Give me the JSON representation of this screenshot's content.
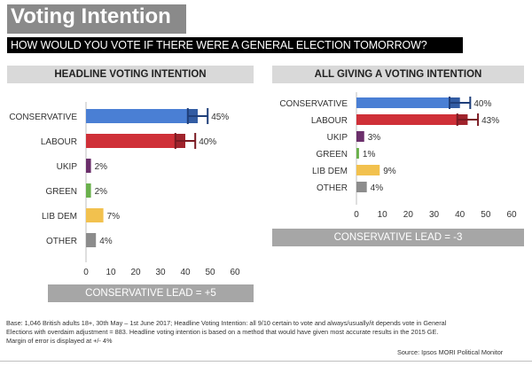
{
  "title": "Voting Intention",
  "subtitle": "HOW WOULD YOU VOTE IF THERE WERE A GENERAL ELECTION TOMORROW?",
  "base_note": "Base: 1,046 British adults 18+, 30th May – 1st June 2017; Headline Voting Intention: all 9/10 certain to vote and always/usually/it depends vote in General Elections with overdaim adjustment = 883. Headline voting intention is based on a method that would have given most accurate results in the 2015 GE. Margin of error is displayed at +/- 4%",
  "source": "Source: Ipsos MORI Political Monitor",
  "colors": {
    "Conservative": "#4a7fd4",
    "Labour": "#cf3038",
    "UKIP": "#6b2f6b",
    "Green": "#6ab04c",
    "LibDem": "#f2c14e",
    "Other": "#8c8c8c",
    "ErrorConservative": "#1f3f7a",
    "ErrorLabour": "#7a1a22"
  },
  "chart_data": [
    {
      "type": "bar",
      "orientation": "horizontal",
      "title": "HEADLINE VOTING INTENTION",
      "categories": [
        "CONSERVATIVE",
        "LABOUR",
        "UKIP",
        "GREEN",
        "LIB DEM",
        "OTHER"
      ],
      "values": [
        45,
        40,
        2,
        2,
        7,
        4
      ],
      "value_labels": [
        "45%",
        "40%",
        "2%",
        "2%",
        "7%",
        "4%"
      ],
      "error_margin": 4,
      "error_bars_on": [
        "CONSERVATIVE",
        "LABOUR"
      ],
      "xlim": [
        0,
        60
      ],
      "xticks": [
        0,
        10,
        20,
        30,
        40,
        50,
        60
      ],
      "grid": false,
      "footer": "CONSERVATIVE LEAD = +5"
    },
    {
      "type": "bar",
      "orientation": "horizontal",
      "title": "ALL GIVING A VOTING INTENTION",
      "categories": [
        "CONSERVATIVE",
        "LABOUR",
        "UKIP",
        "GREEN",
        "LIB DEM",
        "OTHER"
      ],
      "values": [
        40,
        43,
        3,
        1,
        9,
        4
      ],
      "value_labels": [
        "40%",
        "43%",
        "3%",
        "1%",
        "9%",
        "4%"
      ],
      "error_margin": 4,
      "error_bars_on": [
        "CONSERVATIVE",
        "LABOUR"
      ],
      "xlim": [
        0,
        60
      ],
      "xticks": [
        0,
        10,
        20,
        30,
        40,
        50,
        60
      ],
      "grid": false,
      "footer": "CONSERVATIVE LEAD = -3"
    }
  ]
}
